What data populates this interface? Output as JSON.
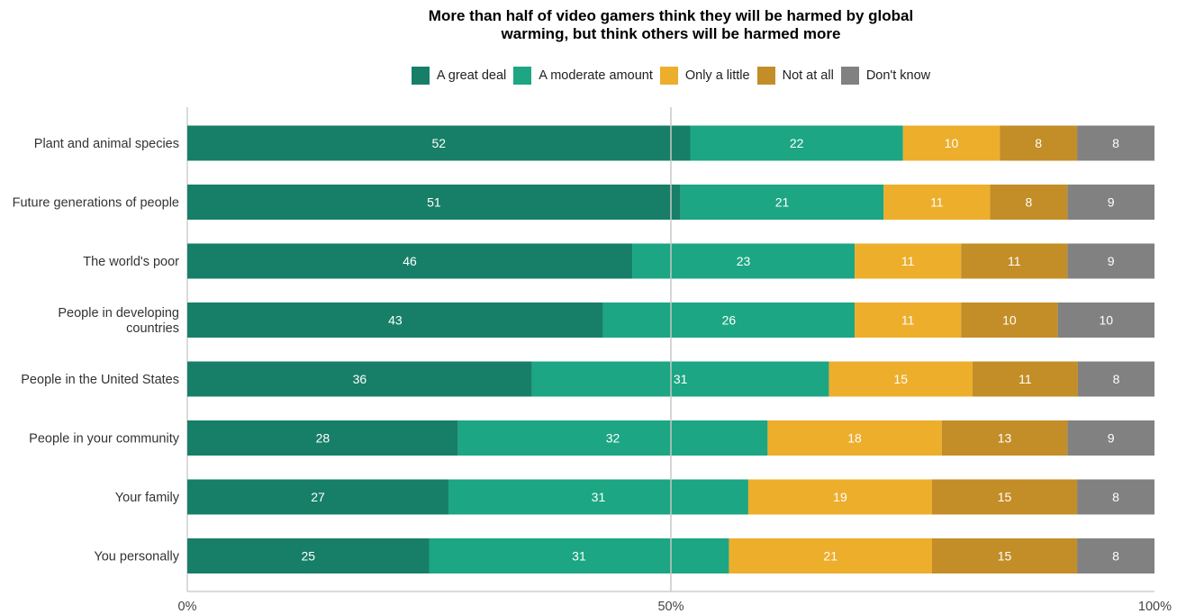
{
  "chart_data": {
    "type": "bar",
    "orientation": "horizontal",
    "stacked": true,
    "title_lines": [
      "More than half of video gamers think they will be harmed by global",
      "warming, but think others will be harmed more"
    ],
    "categories": [
      [
        "Plant and animal species"
      ],
      [
        "Future generations of people"
      ],
      [
        "The world's poor"
      ],
      [
        "People in developing",
        "countries"
      ],
      [
        "People in the United States"
      ],
      [
        "People in your community"
      ],
      [
        "Your family"
      ],
      [
        "You personally"
      ]
    ],
    "series": [
      {
        "name": "A great deal",
        "color": "#177f67",
        "values": [
          52,
          51,
          46,
          43,
          36,
          28,
          27,
          25
        ]
      },
      {
        "name": "A moderate amount",
        "color": "#1ca683",
        "values": [
          22,
          21,
          23,
          26,
          31,
          32,
          31,
          31
        ]
      },
      {
        "name": "Only a little",
        "color": "#edae2c",
        "values": [
          10,
          11,
          11,
          11,
          15,
          18,
          19,
          21
        ]
      },
      {
        "name": "Not at all",
        "color": "#c38e27",
        "values": [
          8,
          8,
          11,
          10,
          11,
          13,
          15,
          15
        ]
      },
      {
        "name": "Don't know",
        "color": "#818181",
        "values": [
          8,
          9,
          9,
          10,
          8,
          9,
          8,
          8
        ]
      }
    ],
    "xticks": [
      "0%",
      "50%",
      "100%"
    ],
    "xlim": [
      0,
      100
    ],
    "grid": "vertical at 50%",
    "legend_position": "top"
  }
}
